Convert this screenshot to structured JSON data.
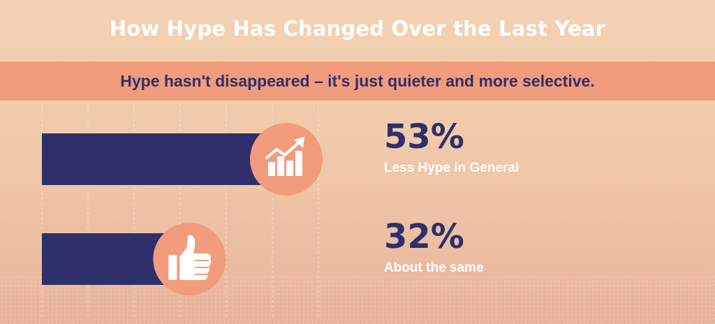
{
  "title": "How Hype Has Changed Over the Last Year",
  "subtitle": "Hype hasn't disappeared – it's just quieter and more selective.",
  "colors": {
    "bar": "#2e2f6b",
    "icon_circle": "#f19c7c",
    "accent_banner": "#f19c7c",
    "text_light": "#ffffff"
  },
  "chart_data": {
    "type": "bar",
    "orientation": "horizontal",
    "title": "How Hype Has Changed Over the Last Year",
    "categories": [
      "Less Hype in General",
      "About the same"
    ],
    "values": [
      53,
      32
    ],
    "value_labels": [
      "53%",
      "32%"
    ],
    "unit": "%",
    "xlim": [
      0,
      100
    ],
    "grid": true,
    "icons": [
      "trending-up-chart-icon",
      "thumbs-up-icon"
    ]
  }
}
